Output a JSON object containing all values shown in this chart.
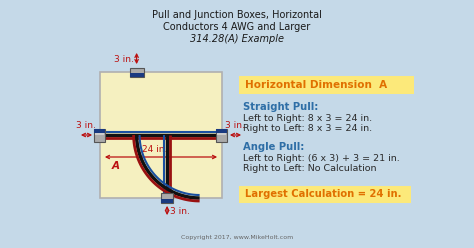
{
  "title_line1": "Pull and Junction Boxes, Horizontal",
  "title_line2": "Conductors 4 AWG and Larger",
  "title_line3": "314.28(A) Example",
  "bg_color": "#c5d9e8",
  "box_color": "#f5f0c0",
  "box_edge_color": "#b0b0b0",
  "header_label": "Horizontal Dimension  A",
  "header_bg": "#fce97a",
  "header_color": "#e07000",
  "straight_pull_label": "Straight Pull:",
  "straight_pull_line1": "Left to Right: 8 x 3 = 24 in.",
  "straight_pull_line2": "Right to Left: 8 x 3 = 24 in.",
  "angle_pull_label": "Angle Pull:",
  "angle_pull_line1": "Left to Right: (6 x 3) + 3 = 21 in.",
  "angle_pull_line2": "Right to Left: No Calculation",
  "largest_label": "Largest Calculation = 24 in.",
  "largest_bg": "#fce97a",
  "largest_color": "#e07000",
  "pull_color": "#2e6ea6",
  "text_color": "#2a2a2a",
  "dim_color": "#bb1111",
  "label_3in_top": "3 in.",
  "label_3in_right": "3 in.",
  "label_3in_left": "3 in.",
  "label_3in_bottom": "3 in.",
  "label_24in": "24 in.",
  "label_A": "A",
  "copyright": "Copyright 2017, www.MikeHolt.com",
  "wire_colors": [
    "#111111",
    "#991111",
    "#1a50a0"
  ],
  "connector_color": "#888888",
  "connector_band_color": "#1a3a80"
}
